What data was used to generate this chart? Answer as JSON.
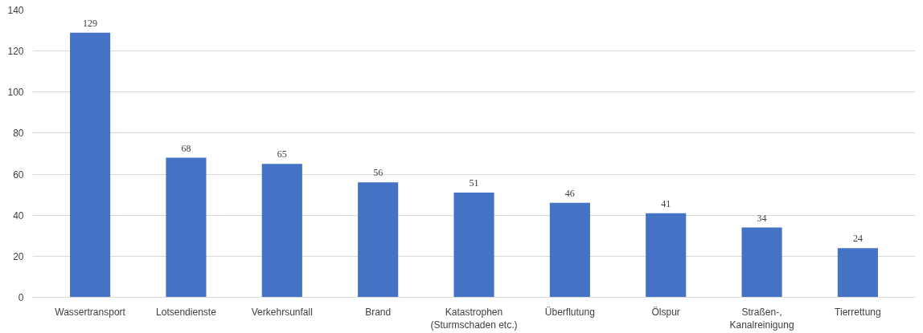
{
  "chart_data": {
    "type": "bar",
    "categories": [
      "Wassertransport",
      "Lotsendienste",
      "Verkehrsunfall",
      "Brand",
      "Katastrophen\n(Sturmschaden etc.)",
      "Überflutung",
      "Ölspur",
      "Straßen-,\nKanalreinigung",
      "Tierrettung"
    ],
    "values": [
      129,
      68,
      65,
      56,
      51,
      46,
      41,
      34,
      24
    ],
    "color": "#4472c4",
    "ylim": [
      0,
      140
    ],
    "yticks": [
      0,
      20,
      40,
      60,
      80,
      100,
      120,
      140
    ],
    "grid": "y",
    "data_labels": true
  }
}
